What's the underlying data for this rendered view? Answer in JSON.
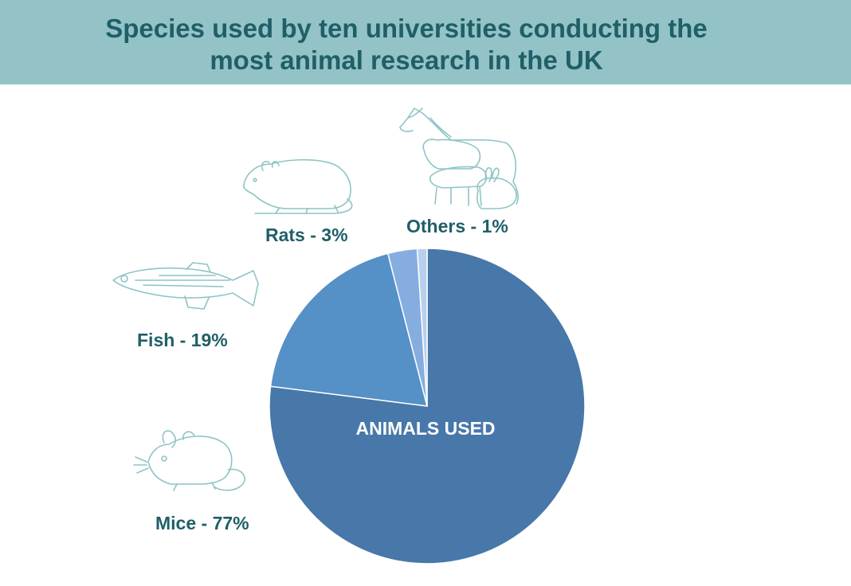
{
  "header": {
    "title_line1": "Species used by ten universities conducting the",
    "title_line2": "most animal research in the UK",
    "background_color": "#93c3c6",
    "title_color": "#1f5f68"
  },
  "labels": {
    "rats": "Rats - 3%",
    "others": "Others - 1%",
    "fish": "Fish - 19%",
    "mice": "Mice - 77%"
  },
  "icons": {
    "rats": "rat-sketch-icon",
    "others": "horse-sheep-pig-rabbit-sketch-icon",
    "fish": "fish-sketch-icon",
    "mice": "mouse-sketch-icon"
  },
  "chart_data": {
    "type": "pie",
    "center_label": "ANIMALS USED",
    "slices": [
      {
        "name": "Mice",
        "value": 77,
        "color": "#4778a9"
      },
      {
        "name": "Fish",
        "value": 19,
        "color": "#5590c7"
      },
      {
        "name": "Rats",
        "value": 3,
        "color": "#86ade0"
      },
      {
        "name": "Others",
        "value": 1,
        "color": "#b8d0ee"
      }
    ]
  }
}
